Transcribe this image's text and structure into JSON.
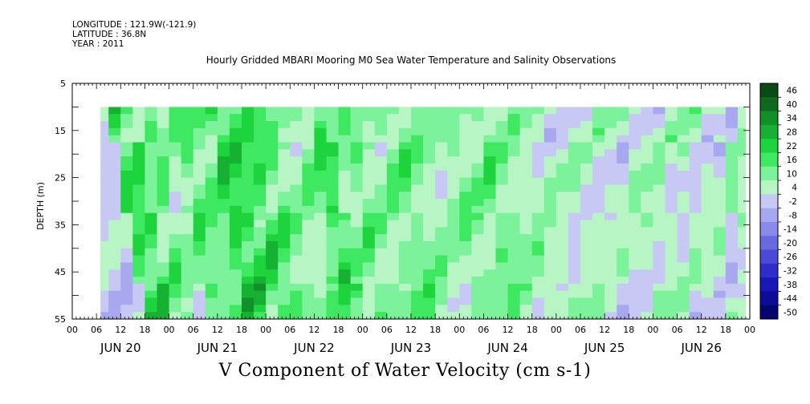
{
  "header": {
    "longitude": "LONGITUDE : 121.9W(-121.9)",
    "latitude": "LATITUDE : 36.8N",
    "year": "YEAR : 2011"
  },
  "chart_data": {
    "type": "heatmap",
    "title": "Hourly Gridded MBARI Mooring M0 Sea Water Temperature and Salinity Observations",
    "xlabel": "V Component of Water Velocity (cm s-1)",
    "ylabel": "DEPTH (m)",
    "y_reversed": true,
    "ylim": [
      5,
      55
    ],
    "y_ticks": [
      5,
      15,
      25,
      35,
      45,
      55
    ],
    "x_range_hours": [
      0,
      168
    ],
    "x_tick_labels": [
      "00",
      "06",
      "12",
      "18",
      "00",
      "06",
      "12",
      "18",
      "00",
      "06",
      "12",
      "18",
      "00",
      "06",
      "12",
      "18",
      "00",
      "06",
      "12",
      "18",
      "00",
      "06",
      "12",
      "18",
      "00",
      "06",
      "12",
      "18",
      "00"
    ],
    "x_day_labels": [
      "JUN 20",
      "JUN 21",
      "JUN 22",
      "JUN 23",
      "JUN 24",
      "JUN 25",
      "JUN 26"
    ],
    "data_extent": {
      "hour_start": 7,
      "hour_end": 167,
      "depth_top": 10,
      "depth_bottom": 55
    },
    "colorbar": {
      "levels": [
        46,
        40,
        34,
        28,
        22,
        16,
        10,
        4,
        -2,
        -8,
        -14,
        -20,
        -26,
        -32,
        -38,
        -44,
        -50
      ],
      "colors": [
        "#0a4a14",
        "#0f6a1e",
        "#129028",
        "#16b032",
        "#1ed43c",
        "#3ee860",
        "#7cf29a",
        "#b7f5c4",
        "#c8c8f5",
        "#a8a8f0",
        "#8a8aea",
        "#6a6ae0",
        "#4a4ad6",
        "#2e2ecb",
        "#1818b8",
        "#0c0c96",
        "#050570"
      ]
    },
    "field_stripes": [
      {
        "hour": 7,
        "value": -6
      },
      {
        "hour": 9,
        "value": 18
      },
      {
        "hour": 12,
        "value": 20
      },
      {
        "hour": 15,
        "value": 8
      },
      {
        "hour": 18,
        "value": 12
      },
      {
        "hour": 21,
        "value": 2
      },
      {
        "hour": 24,
        "value": 14
      },
      {
        "hour": 27,
        "value": 12
      },
      {
        "hour": 30,
        "value": 10
      },
      {
        "hour": 33,
        "value": 22
      },
      {
        "hour": 36,
        "value": 24
      },
      {
        "hour": 39,
        "value": 16
      },
      {
        "hour": 42,
        "value": 18
      },
      {
        "hour": 45,
        "value": 14
      },
      {
        "hour": 48,
        "value": 10
      },
      {
        "hour": 51,
        "value": 4
      },
      {
        "hour": 54,
        "value": 8
      },
      {
        "hour": 57,
        "value": 14
      },
      {
        "hour": 60,
        "value": 20
      },
      {
        "hour": 63,
        "value": 6
      },
      {
        "hour": 66,
        "value": 12
      },
      {
        "hour": 69,
        "value": 8
      },
      {
        "hour": 72,
        "value": 4
      },
      {
        "hour": 75,
        "value": 10
      },
      {
        "hour": 78,
        "value": 12
      },
      {
        "hour": 81,
        "value": 8
      },
      {
        "hour": 84,
        "value": 6
      },
      {
        "hour": 87,
        "value": 2
      },
      {
        "hour": 90,
        "value": 8
      },
      {
        "hour": 93,
        "value": 10
      },
      {
        "hour": 96,
        "value": 6
      },
      {
        "hour": 99,
        "value": 12
      },
      {
        "hour": 102,
        "value": 8
      },
      {
        "hour": 105,
        "value": 4
      },
      {
        "hour": 108,
        "value": 6
      },
      {
        "hour": 111,
        "value": 2
      },
      {
        "hour": 114,
        "value": 4
      },
      {
        "hour": 117,
        "value": -2
      },
      {
        "hour": 120,
        "value": 2
      },
      {
        "hour": 123,
        "value": 0
      },
      {
        "hour": 126,
        "value": -4
      },
      {
        "hour": 129,
        "value": 2
      },
      {
        "hour": 132,
        "value": -2
      },
      {
        "hour": 135,
        "value": 4
      },
      {
        "hour": 138,
        "value": 0
      },
      {
        "hour": 141,
        "value": 2
      },
      {
        "hour": 144,
        "value": -4
      },
      {
        "hour": 147,
        "value": 4
      },
      {
        "hour": 150,
        "value": -2
      },
      {
        "hour": 153,
        "value": 2
      },
      {
        "hour": 156,
        "value": -6
      },
      {
        "hour": 159,
        "value": 6
      },
      {
        "hour": 162,
        "value": -2
      },
      {
        "hour": 165,
        "value": 4
      }
    ]
  }
}
